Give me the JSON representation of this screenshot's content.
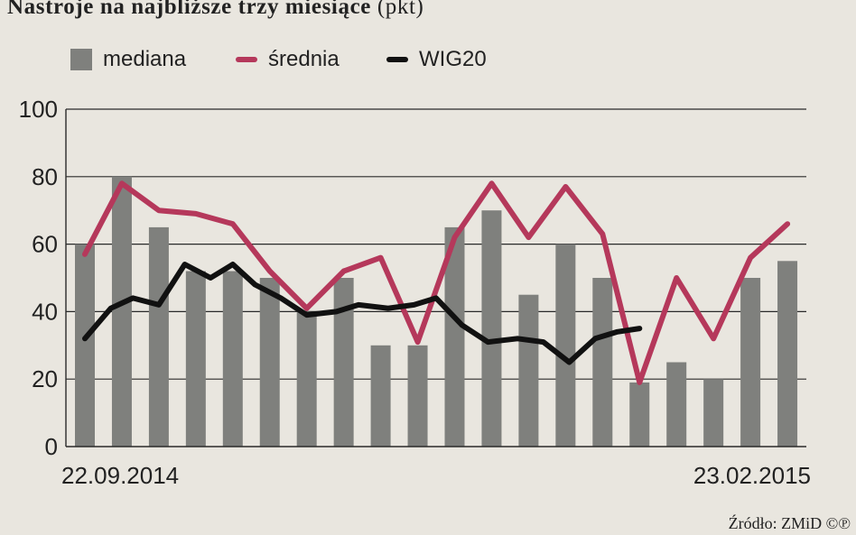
{
  "title": "Nastroje na najbliższe trzy miesiące",
  "title_unit": "(pkt)",
  "legend": [
    {
      "label": "mediana",
      "kind": "bar",
      "color": "#7f807d"
    },
    {
      "label": "średnia",
      "kind": "line",
      "color": "#b5385b"
    },
    {
      "label": "WIG20",
      "kind": "line",
      "color": "#111111"
    }
  ],
  "source": "Źródło: ZMiD ©℗",
  "chart_data": {
    "type": "bar",
    "x_start_label": "22.09.2014",
    "x_end_label": "23.02.2015",
    "y_ticks": [
      0,
      20,
      40,
      60,
      80,
      100
    ],
    "ylim": [
      0,
      100
    ],
    "grid": true,
    "series": [
      {
        "name": "mediana",
        "type": "bar",
        "color": "#7f807d",
        "values": [
          60,
          80,
          65,
          52,
          52,
          50,
          40,
          50,
          30,
          30,
          65,
          70,
          45,
          60,
          50,
          19,
          25,
          20,
          50,
          55
        ]
      },
      {
        "name": "średnia",
        "type": "line",
        "color": "#b5385b",
        "x": [
          0,
          1,
          2,
          3,
          4,
          5,
          6,
          7,
          8,
          9,
          10,
          11,
          12,
          13,
          14,
          15,
          16,
          17,
          18,
          19
        ],
        "values": [
          57,
          78,
          70,
          69,
          66,
          52,
          41,
          52,
          56,
          31,
          62,
          78,
          62,
          77,
          63,
          19,
          50,
          32,
          56,
          66
        ]
      },
      {
        "name": "WIG20",
        "type": "line",
        "color": "#111111",
        "x": [
          0,
          0.7,
          1.3,
          2.0,
          2.7,
          3.4,
          4.0,
          4.6,
          5.3,
          6.0,
          6.8,
          7.4,
          8.2,
          8.9,
          9.5,
          10.2,
          10.9,
          11.7,
          12.4,
          13.1,
          13.8,
          14.4,
          15.0
        ],
        "values": [
          32,
          41,
          44,
          42,
          54,
          50,
          54,
          48,
          44,
          39,
          40,
          42,
          41,
          42,
          44,
          36,
          31,
          32,
          31,
          25,
          32,
          34,
          35
        ]
      }
    ]
  }
}
